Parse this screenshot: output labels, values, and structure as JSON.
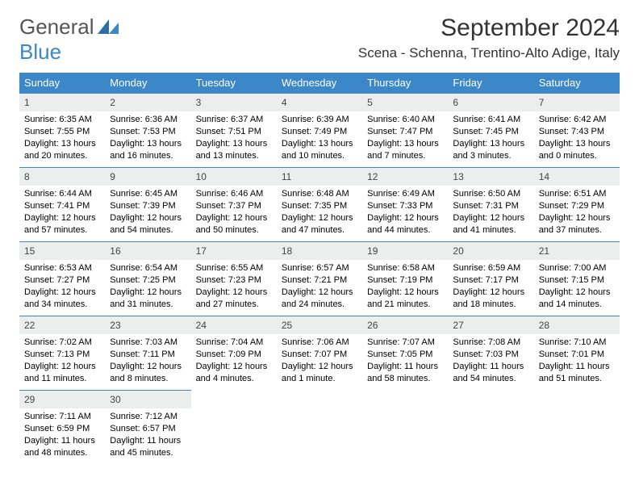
{
  "logo": {
    "text_a": "General",
    "text_b": "Blue"
  },
  "title": "September 2024",
  "location": "Scena - Schenna, Trentino-Alto Adige, Italy",
  "colors": {
    "header_bg": "#3b87c8",
    "header_fg": "#ffffff",
    "daynum_bg": "#eceeee",
    "border": "#3b87c8"
  },
  "day_names": [
    "Sunday",
    "Monday",
    "Tuesday",
    "Wednesday",
    "Thursday",
    "Friday",
    "Saturday"
  ],
  "weeks": [
    [
      {
        "n": "1",
        "sr": "6:35 AM",
        "ss": "7:55 PM",
        "dl": "13 hours and 20 minutes."
      },
      {
        "n": "2",
        "sr": "6:36 AM",
        "ss": "7:53 PM",
        "dl": "13 hours and 16 minutes."
      },
      {
        "n": "3",
        "sr": "6:37 AM",
        "ss": "7:51 PM",
        "dl": "13 hours and 13 minutes."
      },
      {
        "n": "4",
        "sr": "6:39 AM",
        "ss": "7:49 PM",
        "dl": "13 hours and 10 minutes."
      },
      {
        "n": "5",
        "sr": "6:40 AM",
        "ss": "7:47 PM",
        "dl": "13 hours and 7 minutes."
      },
      {
        "n": "6",
        "sr": "6:41 AM",
        "ss": "7:45 PM",
        "dl": "13 hours and 3 minutes."
      },
      {
        "n": "7",
        "sr": "6:42 AM",
        "ss": "7:43 PM",
        "dl": "13 hours and 0 minutes."
      }
    ],
    [
      {
        "n": "8",
        "sr": "6:44 AM",
        "ss": "7:41 PM",
        "dl": "12 hours and 57 minutes."
      },
      {
        "n": "9",
        "sr": "6:45 AM",
        "ss": "7:39 PM",
        "dl": "12 hours and 54 minutes."
      },
      {
        "n": "10",
        "sr": "6:46 AM",
        "ss": "7:37 PM",
        "dl": "12 hours and 50 minutes."
      },
      {
        "n": "11",
        "sr": "6:48 AM",
        "ss": "7:35 PM",
        "dl": "12 hours and 47 minutes."
      },
      {
        "n": "12",
        "sr": "6:49 AM",
        "ss": "7:33 PM",
        "dl": "12 hours and 44 minutes."
      },
      {
        "n": "13",
        "sr": "6:50 AM",
        "ss": "7:31 PM",
        "dl": "12 hours and 41 minutes."
      },
      {
        "n": "14",
        "sr": "6:51 AM",
        "ss": "7:29 PM",
        "dl": "12 hours and 37 minutes."
      }
    ],
    [
      {
        "n": "15",
        "sr": "6:53 AM",
        "ss": "7:27 PM",
        "dl": "12 hours and 34 minutes."
      },
      {
        "n": "16",
        "sr": "6:54 AM",
        "ss": "7:25 PM",
        "dl": "12 hours and 31 minutes."
      },
      {
        "n": "17",
        "sr": "6:55 AM",
        "ss": "7:23 PM",
        "dl": "12 hours and 27 minutes."
      },
      {
        "n": "18",
        "sr": "6:57 AM",
        "ss": "7:21 PM",
        "dl": "12 hours and 24 minutes."
      },
      {
        "n": "19",
        "sr": "6:58 AM",
        "ss": "7:19 PM",
        "dl": "12 hours and 21 minutes."
      },
      {
        "n": "20",
        "sr": "6:59 AM",
        "ss": "7:17 PM",
        "dl": "12 hours and 18 minutes."
      },
      {
        "n": "21",
        "sr": "7:00 AM",
        "ss": "7:15 PM",
        "dl": "12 hours and 14 minutes."
      }
    ],
    [
      {
        "n": "22",
        "sr": "7:02 AM",
        "ss": "7:13 PM",
        "dl": "12 hours and 11 minutes."
      },
      {
        "n": "23",
        "sr": "7:03 AM",
        "ss": "7:11 PM",
        "dl": "12 hours and 8 minutes."
      },
      {
        "n": "24",
        "sr": "7:04 AM",
        "ss": "7:09 PM",
        "dl": "12 hours and 4 minutes."
      },
      {
        "n": "25",
        "sr": "7:06 AM",
        "ss": "7:07 PM",
        "dl": "12 hours and 1 minute."
      },
      {
        "n": "26",
        "sr": "7:07 AM",
        "ss": "7:05 PM",
        "dl": "11 hours and 58 minutes."
      },
      {
        "n": "27",
        "sr": "7:08 AM",
        "ss": "7:03 PM",
        "dl": "11 hours and 54 minutes."
      },
      {
        "n": "28",
        "sr": "7:10 AM",
        "ss": "7:01 PM",
        "dl": "11 hours and 51 minutes."
      }
    ],
    [
      {
        "n": "29",
        "sr": "7:11 AM",
        "ss": "6:59 PM",
        "dl": "11 hours and 48 minutes."
      },
      {
        "n": "30",
        "sr": "7:12 AM",
        "ss": "6:57 PM",
        "dl": "11 hours and 45 minutes."
      },
      null,
      null,
      null,
      null,
      null
    ]
  ],
  "labels": {
    "sunrise": "Sunrise: ",
    "sunset": "Sunset: ",
    "daylight": "Daylight: "
  }
}
